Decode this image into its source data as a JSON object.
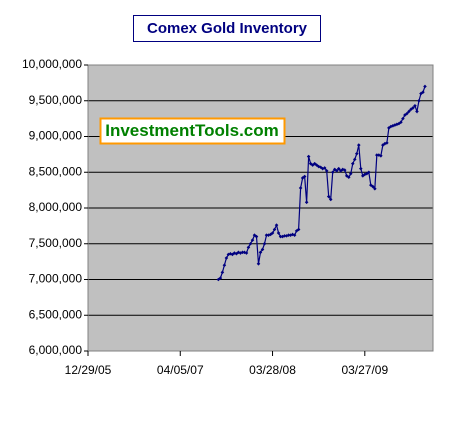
{
  "chart_data": {
    "type": "line",
    "title": "Comex Gold Inventory",
    "watermark": "InvestmentTools.com",
    "xlim": [
      0,
      172
    ],
    "xticks": [
      {
        "value": 0,
        "label": "12/29/05"
      },
      {
        "value": 46,
        "label": "04/05/07"
      },
      {
        "value": 92,
        "label": "03/28/08"
      },
      {
        "value": 138,
        "label": "03/27/09"
      }
    ],
    "ylim": [
      6000000,
      10000000
    ],
    "yticks": [
      {
        "value": 6000000,
        "label": "6,000,000"
      },
      {
        "value": 6500000,
        "label": "6,500,000"
      },
      {
        "value": 7000000,
        "label": "7,000,000"
      },
      {
        "value": 7500000,
        "label": "7,500,000"
      },
      {
        "value": 8000000,
        "label": "8,000,000"
      },
      {
        "value": 8500000,
        "label": "8,500,000"
      },
      {
        "value": 9000000,
        "label": "9,000,000"
      },
      {
        "value": 9500000,
        "label": "9,500,000"
      },
      {
        "value": 10000000,
        "label": "10,000,000"
      }
    ],
    "grid": true,
    "x": [
      65,
      66,
      67,
      68,
      69,
      70,
      71,
      72,
      73,
      74,
      75,
      76,
      77,
      78,
      79,
      80,
      81,
      82,
      83,
      84,
      85,
      86,
      87,
      88,
      89,
      90,
      91,
      92,
      93,
      94,
      95,
      96,
      97,
      98,
      99,
      100,
      101,
      102,
      103,
      104,
      105,
      106,
      107,
      108,
      109,
      110,
      111,
      112,
      113,
      114,
      115,
      116,
      117,
      118,
      119,
      120,
      121,
      122,
      123,
      124,
      125,
      126,
      127,
      128,
      129,
      130,
      131,
      132,
      133,
      134,
      135,
      136,
      137,
      138,
      139,
      140,
      141,
      142,
      143,
      144,
      145,
      146,
      147,
      148,
      149,
      150,
      151,
      152,
      153,
      154,
      155,
      156,
      157,
      158,
      159,
      160,
      161,
      162,
      163,
      164,
      165,
      166,
      167,
      168
    ],
    "color": "#000080",
    "values": [
      7000000,
      7020000,
      7100000,
      7200000,
      7300000,
      7350000,
      7360000,
      7350000,
      7370000,
      7360000,
      7380000,
      7370000,
      7380000,
      7380000,
      7370000,
      7450000,
      7500000,
      7550000,
      7620000,
      7600000,
      7220000,
      7380000,
      7420000,
      7500000,
      7620000,
      7620000,
      7630000,
      7650000,
      7700000,
      7760000,
      7650000,
      7600000,
      7600000,
      7610000,
      7610000,
      7620000,
      7620000,
      7630000,
      7620000,
      7680000,
      7700000,
      8280000,
      8420000,
      8440000,
      8080000,
      8720000,
      8620000,
      8600000,
      8620000,
      8600000,
      8580000,
      8570000,
      8550000,
      8560000,
      8520000,
      8160000,
      8120000,
      8500000,
      8540000,
      8520000,
      8550000,
      8520000,
      8540000,
      8530000,
      8450000,
      8430000,
      8480000,
      8620000,
      8680000,
      8760000,
      8880000,
      8550000,
      8450000,
      8470000,
      8480000,
      8500000,
      8320000,
      8300000,
      8270000,
      8740000,
      8740000,
      8730000,
      8880000,
      8900000,
      8910000,
      9120000,
      9140000,
      9150000,
      9160000,
      9170000,
      9180000,
      9200000,
      9250000,
      9300000,
      9320000,
      9350000,
      9380000,
      9400000,
      9430000,
      9350000,
      9500000,
      9600000,
      9620000,
      9700000
    ]
  }
}
